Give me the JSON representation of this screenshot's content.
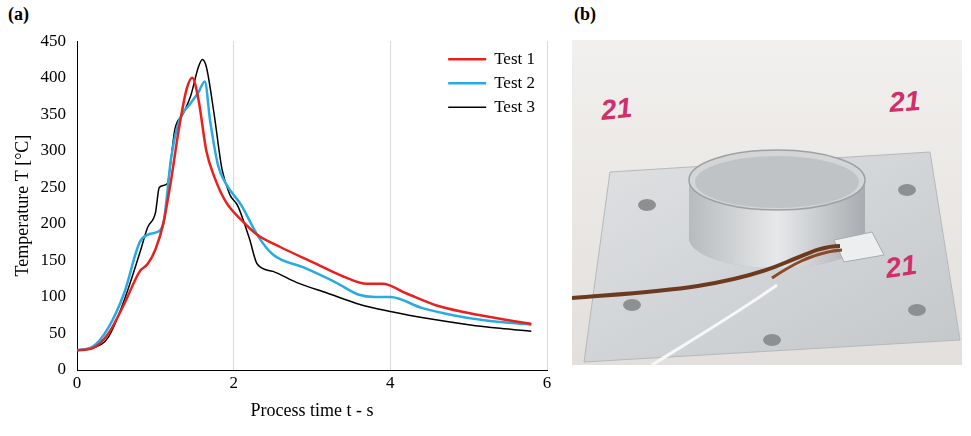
{
  "chart_data": {
    "type": "line",
    "x_label": "Process time t - s",
    "y_label": "Temperature T [°C]",
    "xlim": [
      0,
      6
    ],
    "xticks": [
      0,
      2,
      4,
      6
    ],
    "ylim": [
      0,
      450
    ],
    "yticks": [
      0,
      50,
      100,
      150,
      200,
      250,
      300,
      350,
      400,
      450
    ],
    "grid": "x",
    "legend": "upper right",
    "series": [
      {
        "name": "Test 1",
        "color": "#e8201e",
        "x": [
          0,
          0.2,
          0.4,
          0.6,
          0.8,
          0.9,
          1.0,
          1.1,
          1.2,
          1.3,
          1.4,
          1.47,
          1.55,
          1.65,
          1.75,
          1.9,
          2.1,
          2.3,
          2.6,
          3.0,
          3.4,
          3.7,
          3.9,
          4.2,
          4.6,
          5.0,
          5.4,
          5.8
        ],
        "values": [
          27,
          30,
          50,
          90,
          135,
          145,
          165,
          200,
          260,
          330,
          385,
          400,
          370,
          300,
          265,
          230,
          205,
          185,
          168,
          148,
          128,
          118,
          118,
          105,
          88,
          78,
          70,
          63
        ]
      },
      {
        "name": "Test 2",
        "color": "#29abe2",
        "x": [
          0,
          0.2,
          0.4,
          0.6,
          0.8,
          0.9,
          1.0,
          1.1,
          1.2,
          1.3,
          1.45,
          1.55,
          1.63,
          1.7,
          1.8,
          1.9,
          2.1,
          2.3,
          2.5,
          2.9,
          3.3,
          3.6,
          3.8,
          4.0,
          4.4,
          4.8,
          5.2,
          5.8
        ],
        "values": [
          27,
          32,
          58,
          105,
          175,
          185,
          188,
          200,
          290,
          340,
          365,
          380,
          395,
          340,
          280,
          255,
          225,
          185,
          158,
          140,
          120,
          103,
          100,
          100,
          85,
          75,
          68,
          62
        ]
      },
      {
        "name": "Test 3",
        "color": "#000000",
        "x": [
          0,
          0.2,
          0.4,
          0.6,
          0.8,
          0.9,
          1.0,
          1.05,
          1.15,
          1.25,
          1.35,
          1.45,
          1.55,
          1.6,
          1.65,
          1.75,
          1.85,
          1.95,
          2.05,
          2.2,
          2.3,
          2.5,
          2.8,
          3.2,
          3.6,
          4.0,
          4.5,
          5.0,
          5.4,
          5.8
        ],
        "values": [
          27,
          30,
          45,
          95,
          160,
          195,
          215,
          250,
          255,
          330,
          350,
          375,
          415,
          425,
          415,
          350,
          275,
          240,
          225,
          180,
          145,
          135,
          120,
          105,
          90,
          80,
          70,
          62,
          57,
          53
        ]
      }
    ]
  },
  "panel_labels": [
    "(a)",
    "(b)"
  ],
  "photo": {
    "labels": [
      "21",
      "21",
      "21"
    ]
  }
}
